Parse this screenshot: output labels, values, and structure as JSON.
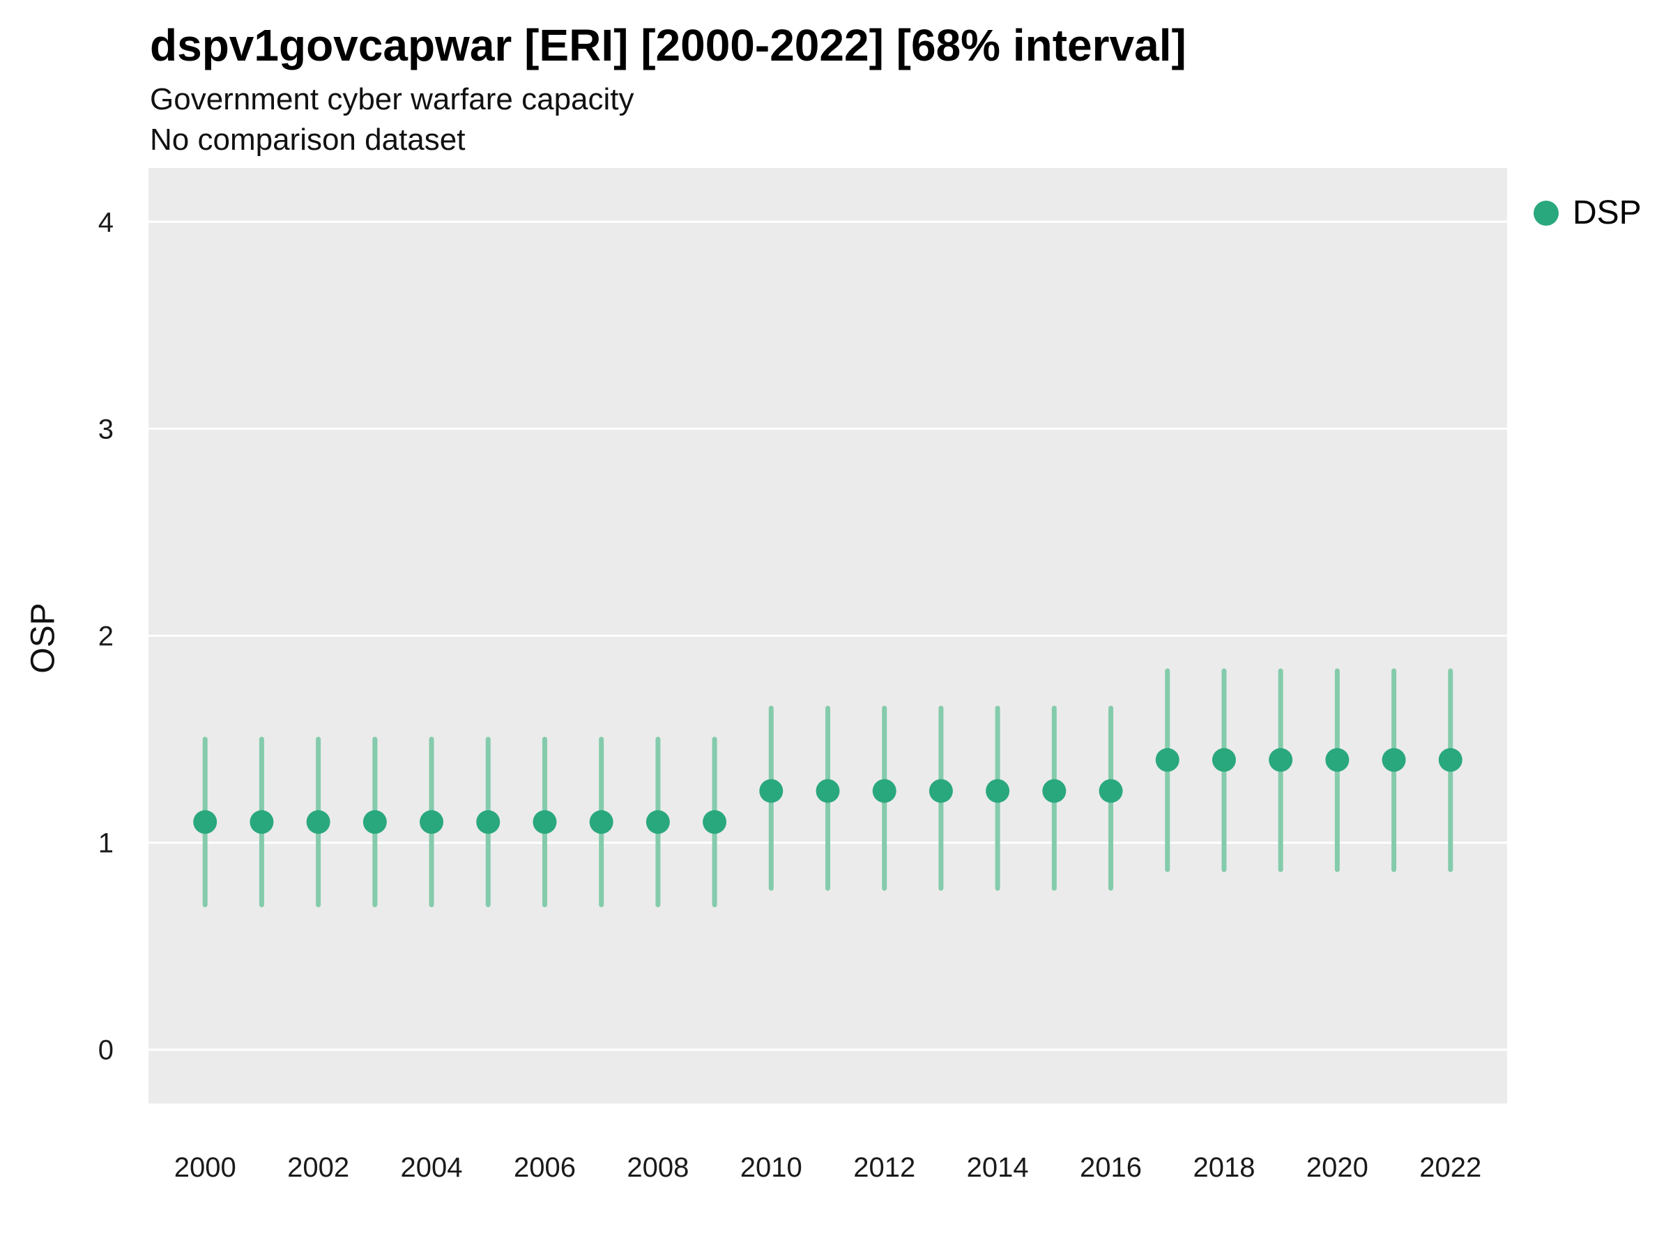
{
  "header": {
    "title": "dspv1govcapwar [ERI] [2000-2022] [68% interval]",
    "subtitle1": "Government cyber warfare capacity",
    "subtitle2": "No comparison dataset"
  },
  "legend": {
    "label": "DSP"
  },
  "chart_data": {
    "type": "scatter",
    "title": "dspv1govcapwar [ERI] [2000-2022] [68% interval]",
    "subtitle": "Government cyber warfare capacity",
    "note": "No comparison dataset",
    "xlabel": "",
    "ylabel": "OSP",
    "interval": "68%",
    "xlim": [
      1999,
      2023
    ],
    "ylim": [
      -0.26,
      4.26
    ],
    "x_ticks": [
      2000,
      2002,
      2004,
      2006,
      2008,
      2010,
      2012,
      2014,
      2016,
      2018,
      2020,
      2022
    ],
    "y_ticks": [
      0,
      1,
      2,
      3,
      4
    ],
    "grid": "horizontal-major-only",
    "legend_position": "top-right",
    "background_color": "#EBEBEB",
    "grid_color": "#FFFFFF",
    "series": [
      {
        "name": "DSP",
        "color": "#2AA87D",
        "interval_color": "#84CBAC",
        "points": [
          {
            "x": 2000,
            "y": 1.1,
            "lo": 0.7,
            "hi": 1.5
          },
          {
            "x": 2001,
            "y": 1.1,
            "lo": 0.7,
            "hi": 1.5
          },
          {
            "x": 2002,
            "y": 1.1,
            "lo": 0.7,
            "hi": 1.5
          },
          {
            "x": 2003,
            "y": 1.1,
            "lo": 0.7,
            "hi": 1.5
          },
          {
            "x": 2004,
            "y": 1.1,
            "lo": 0.7,
            "hi": 1.5
          },
          {
            "x": 2005,
            "y": 1.1,
            "lo": 0.7,
            "hi": 1.5
          },
          {
            "x": 2006,
            "y": 1.1,
            "lo": 0.7,
            "hi": 1.5
          },
          {
            "x": 2007,
            "y": 1.1,
            "lo": 0.7,
            "hi": 1.5
          },
          {
            "x": 2008,
            "y": 1.1,
            "lo": 0.7,
            "hi": 1.5
          },
          {
            "x": 2009,
            "y": 1.1,
            "lo": 0.7,
            "hi": 1.5
          },
          {
            "x": 2010,
            "y": 1.25,
            "lo": 0.78,
            "hi": 1.65
          },
          {
            "x": 2011,
            "y": 1.25,
            "lo": 0.78,
            "hi": 1.65
          },
          {
            "x": 2012,
            "y": 1.25,
            "lo": 0.78,
            "hi": 1.65
          },
          {
            "x": 2013,
            "y": 1.25,
            "lo": 0.78,
            "hi": 1.65
          },
          {
            "x": 2014,
            "y": 1.25,
            "lo": 0.78,
            "hi": 1.65
          },
          {
            "x": 2015,
            "y": 1.25,
            "lo": 0.78,
            "hi": 1.65
          },
          {
            "x": 2016,
            "y": 1.25,
            "lo": 0.78,
            "hi": 1.65
          },
          {
            "x": 2017,
            "y": 1.4,
            "lo": 0.87,
            "hi": 1.83
          },
          {
            "x": 2018,
            "y": 1.4,
            "lo": 0.87,
            "hi": 1.83
          },
          {
            "x": 2019,
            "y": 1.4,
            "lo": 0.87,
            "hi": 1.83
          },
          {
            "x": 2020,
            "y": 1.4,
            "lo": 0.87,
            "hi": 1.83
          },
          {
            "x": 2021,
            "y": 1.4,
            "lo": 0.87,
            "hi": 1.83
          },
          {
            "x": 2022,
            "y": 1.4,
            "lo": 0.87,
            "hi": 1.83
          }
        ]
      }
    ]
  }
}
